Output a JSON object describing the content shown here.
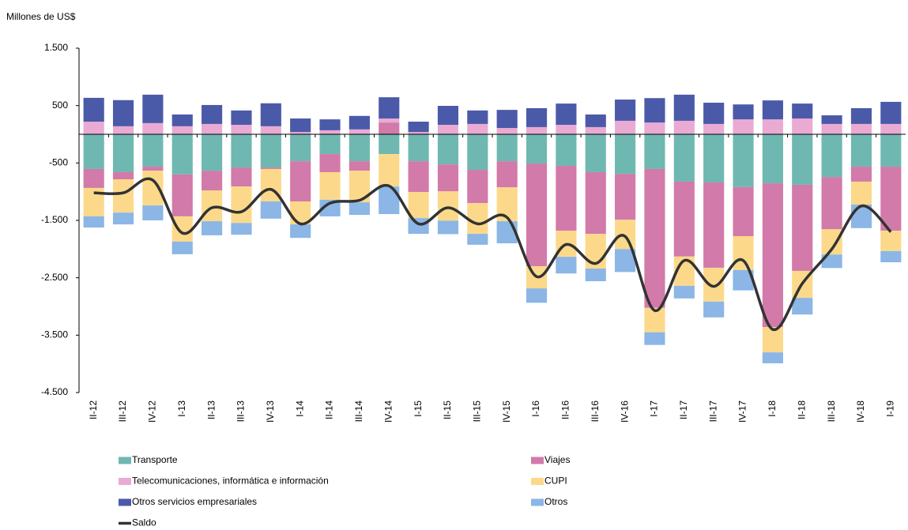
{
  "chart_data": {
    "type": "bar",
    "stacked": true,
    "y_axis_label": "Millones de US$",
    "categories": [
      "II-12",
      "III-12",
      "IV-12",
      "I-13",
      "II-13",
      "III-13",
      "IV-13",
      "I-14",
      "II-14",
      "III-14",
      "IV-14",
      "I-15",
      "II-15",
      "III-15",
      "IV-15",
      "I-16",
      "II-16",
      "III-16",
      "IV-16",
      "I-17",
      "II-17",
      "III-17",
      "IV-17",
      "I-18",
      "II-18",
      "III-18",
      "IV-18",
      "I-19"
    ],
    "ylim": [
      -4500,
      1500
    ],
    "yticks": [
      {
        "value": 1500,
        "label": "1.500"
      },
      500,
      -500,
      {
        "value": -1500,
        "label": "-1.500"
      },
      {
        "value": -2500,
        "label": "-2.500"
      },
      {
        "value": -3500,
        "label": "-3.500"
      },
      {
        "value": -4500,
        "label": "-4.500"
      }
    ],
    "grid": false,
    "legend": "bottom",
    "series": [
      {
        "name": "Transporte",
        "color": "#6fb8b1",
        "values": [
          -605,
          -660,
          -565,
          -700,
          -635,
          -580,
          -580,
          -470,
          -345,
          -470,
          -345,
          -470,
          -525,
          -620,
          -470,
          -510,
          -550,
          -660,
          -690,
          -605,
          -825,
          -840,
          -920,
          -855,
          -880,
          -745,
          -565,
          -565
        ]
      },
      {
        "name": "Viajes",
        "color": "#d27aa9",
        "values": [
          -330,
          -125,
          -70,
          -730,
          -345,
          -330,
          -25,
          -700,
          -315,
          -165,
          205,
          -535,
          -470,
          -580,
          -455,
          -1790,
          -1130,
          -1075,
          -800,
          -2420,
          -1305,
          -1485,
          -855,
          -2505,
          -1500,
          -910,
          -260,
          -1115
        ]
      },
      {
        "name": "Telecomunicaciones, informática e información",
        "color": "#e9aad3",
        "values": [
          220,
          140,
          195,
          140,
          180,
          165,
          140,
          40,
          70,
          85,
          70,
          40,
          165,
          180,
          110,
          125,
          165,
          125,
          235,
          205,
          235,
          180,
          260,
          260,
          275,
          180,
          180,
          180
        ]
      },
      {
        "name": "CUPI",
        "color": "#fcd98a",
        "values": [
          -495,
          -580,
          -605,
          -440,
          -535,
          -635,
          -565,
          -400,
          -480,
          -550,
          -565,
          -455,
          -510,
          -535,
          -590,
          -385,
          -455,
          -605,
          -510,
          -425,
          -510,
          -590,
          -590,
          -440,
          -470,
          -440,
          -400,
          -355
        ]
      },
      {
        "name": "Otros servicios empresariales",
        "color": "#4b5aa8",
        "values": [
          415,
          455,
          495,
          205,
          330,
          250,
          400,
          235,
          190,
          235,
          370,
          180,
          330,
          235,
          315,
          330,
          370,
          220,
          370,
          425,
          455,
          370,
          260,
          330,
          260,
          150,
          275,
          385
        ]
      },
      {
        "name": "Otros",
        "color": "#8bb6e6",
        "values": [
          -195,
          -205,
          -260,
          -220,
          -245,
          -205,
          -300,
          -235,
          -290,
          -220,
          -480,
          -275,
          -235,
          -190,
          -385,
          -250,
          -290,
          -220,
          -400,
          -220,
          -220,
          -275,
          -355,
          -190,
          -290,
          -235,
          -410,
          -195
        ]
      },
      {
        "name": "Saldo",
        "type": "line",
        "color": "#333333",
        "values": [
          -1020,
          -1020,
          -800,
          -1720,
          -1280,
          -1350,
          -960,
          -1560,
          -1200,
          -1150,
          -900,
          -1560,
          -1280,
          -1560,
          -1450,
          -2480,
          -1920,
          -2250,
          -1780,
          -3070,
          -2200,
          -2650,
          -2200,
          -3400,
          -2600,
          -2000,
          -1250,
          -1700
        ]
      }
    ]
  }
}
